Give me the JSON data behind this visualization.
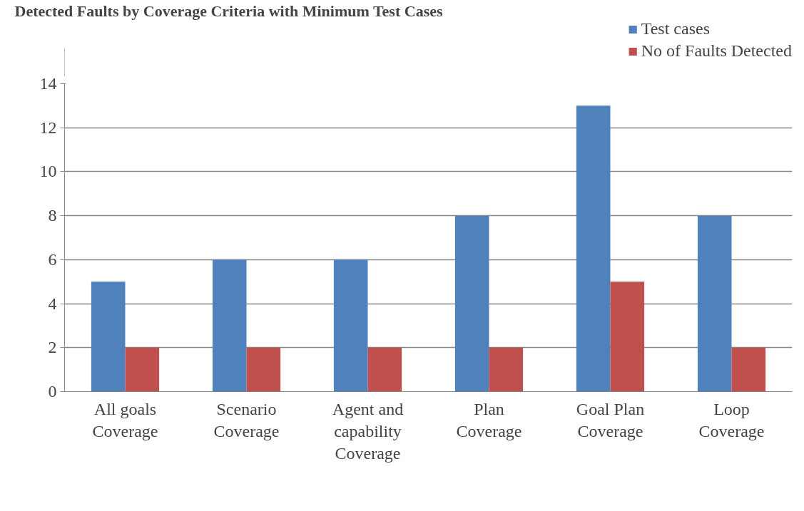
{
  "chart_data": {
    "type": "bar",
    "title": "Detected Faults by Coverage Criteria with Minimum Test Cases",
    "categories": [
      "All goals Coverage",
      "Scenario Coverage",
      "Agent and capability Coverage",
      "Plan Coverage",
      "Goal Plan Coverage",
      "Loop Coverage"
    ],
    "series": [
      {
        "name": "Test cases",
        "color": "#4f81bd",
        "values": [
          5,
          6,
          6,
          8,
          13,
          8
        ]
      },
      {
        "name": "No of Faults Detected",
        "color": "#c0504d",
        "values": [
          2,
          2,
          2,
          2,
          5,
          2
        ]
      }
    ],
    "ylim": [
      0,
      14
    ],
    "yticks": [
      0,
      2,
      4,
      6,
      8,
      10,
      12,
      14
    ],
    "grid": "y",
    "legend": "top right"
  }
}
